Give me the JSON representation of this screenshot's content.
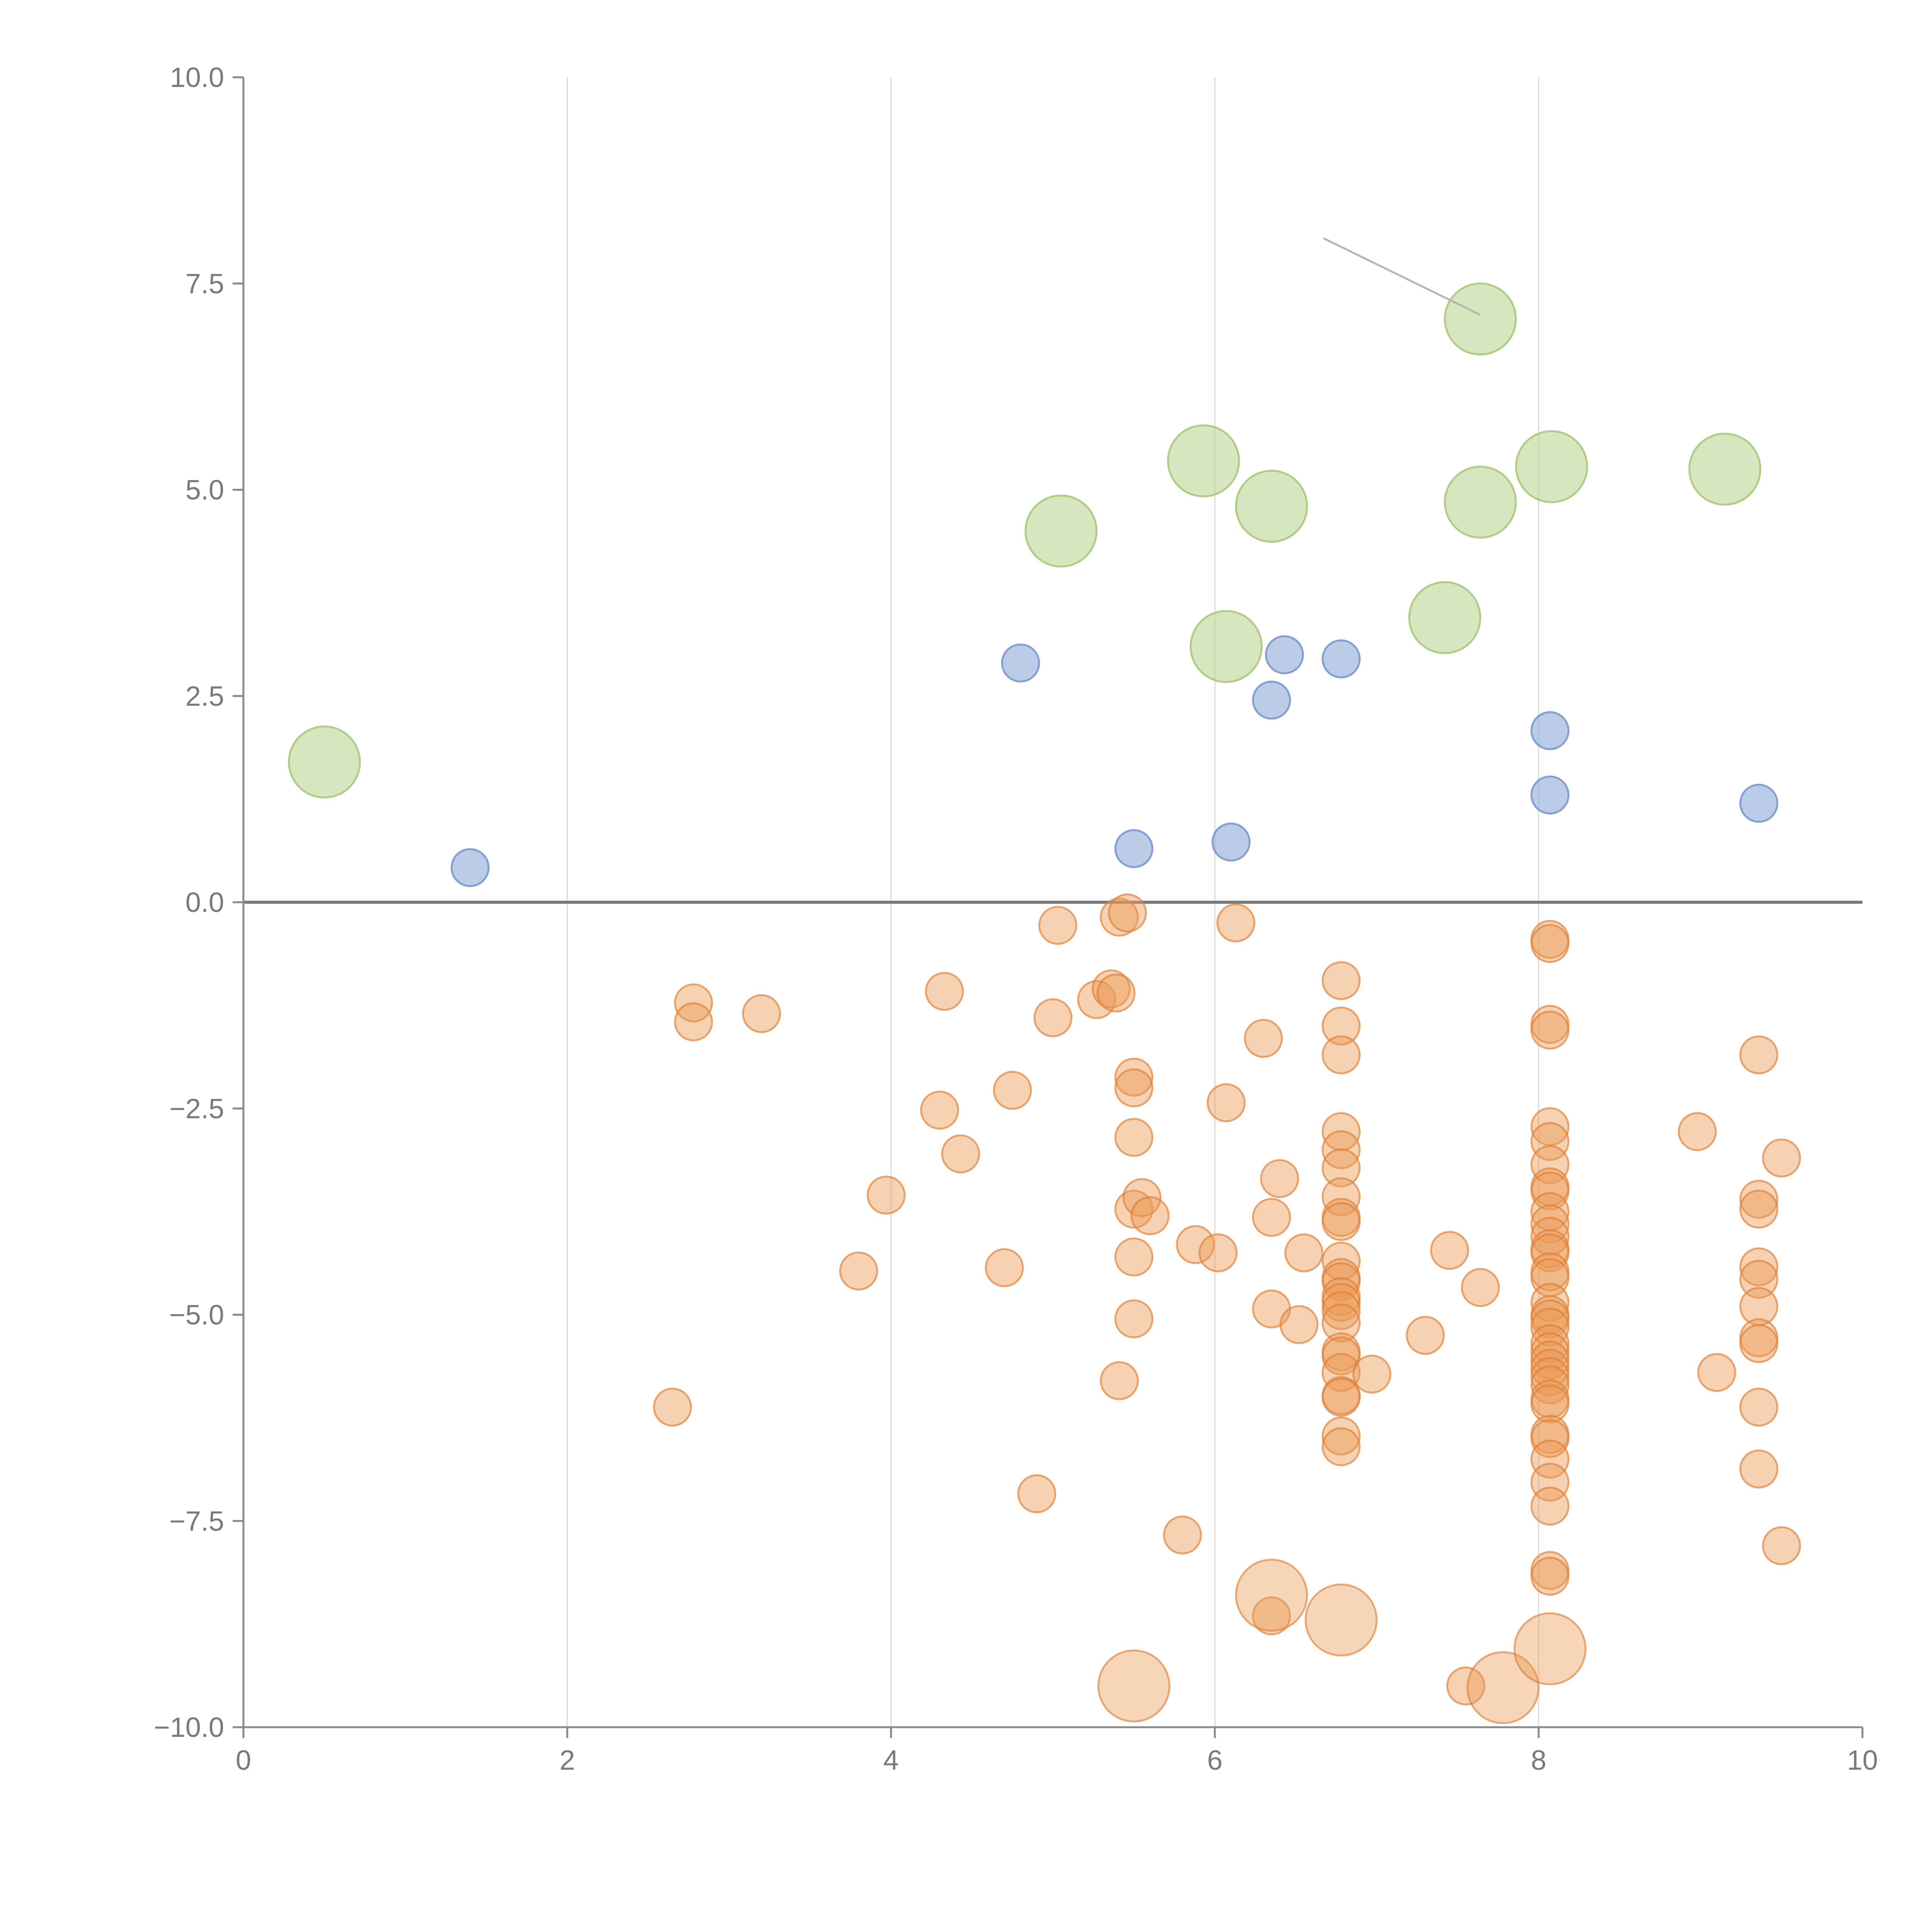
{
  "chart_data": {
    "type": "scatter",
    "title": "",
    "xlabel": "",
    "ylabel": "",
    "xlim": [
      0,
      10
    ],
    "ylim": [
      -10,
      10
    ],
    "x_ticks": [
      0,
      2,
      4,
      6,
      8,
      10
    ],
    "x_tick_labels": [
      "0",
      "2",
      "4",
      "6",
      "8",
      "10"
    ],
    "y_ticks": [
      10,
      7.5,
      5,
      2.5,
      0,
      -2.5,
      -5,
      -7.5,
      -10
    ],
    "y_tick_labels": [
      "10.0",
      "7.5",
      "5.0",
      "2.5",
      "0.0",
      "−2.5",
      "−5.0",
      "−7.5",
      "−10.0"
    ],
    "vertical_gridlines_at": [
      2,
      4,
      6,
      8
    ],
    "zero_line": 0,
    "series": [
      {
        "name": "green-large",
        "color": "#b5d18a",
        "stroke": "#9cc06a",
        "opacity": 0.55,
        "size": "large",
        "points": [
          [
            0.5,
            1.7
          ],
          [
            5.05,
            4.5
          ],
          [
            5.93,
            5.35
          ],
          [
            6.07,
            3.1
          ],
          [
            6.35,
            4.8
          ],
          [
            7.42,
            3.45
          ],
          [
            7.64,
            4.85
          ],
          [
            7.64,
            7.07
          ],
          [
            8.08,
            5.28
          ],
          [
            9.15,
            5.25
          ]
        ]
      },
      {
        "name": "blue-small",
        "color": "#8eaad8",
        "stroke": "#6f8fc8",
        "opacity": 0.6,
        "size": "small",
        "points": [
          [
            1.4,
            0.42
          ],
          [
            4.8,
            2.9
          ],
          [
            5.5,
            0.65
          ],
          [
            6.1,
            0.73
          ],
          [
            6.35,
            2.45
          ],
          [
            6.43,
            3.0
          ],
          [
            6.78,
            2.95
          ],
          [
            8.07,
            2.08
          ],
          [
            8.07,
            1.3
          ],
          [
            9.36,
            1.2
          ]
        ]
      },
      {
        "name": "orange-small",
        "color": "#ea9a55",
        "stroke": "#dd7e35",
        "opacity": 0.45,
        "size": "small",
        "points": [
          [
            2.65,
            -6.12
          ],
          [
            2.78,
            -1.22
          ],
          [
            2.78,
            -1.45
          ],
          [
            3.2,
            -1.35
          ],
          [
            3.8,
            -4.47
          ],
          [
            3.97,
            -3.55
          ],
          [
            4.3,
            -2.52
          ],
          [
            4.33,
            -1.08
          ],
          [
            4.43,
            -3.05
          ],
          [
            4.7,
            -4.43
          ],
          [
            4.75,
            -2.28
          ],
          [
            4.9,
            -7.17
          ],
          [
            5.0,
            -1.4
          ],
          [
            5.03,
            -0.28
          ],
          [
            5.27,
            -1.18
          ],
          [
            5.36,
            -1.05
          ],
          [
            5.39,
            -1.1
          ],
          [
            5.41,
            -0.18
          ],
          [
            5.41,
            -5.8
          ],
          [
            5.46,
            -0.13
          ],
          [
            5.5,
            -2.12
          ],
          [
            5.5,
            -2.25
          ],
          [
            5.5,
            -2.85
          ],
          [
            5.5,
            -3.72
          ],
          [
            5.5,
            -4.3
          ],
          [
            5.5,
            -5.05
          ],
          [
            5.55,
            -3.58
          ],
          [
            5.6,
            -3.8
          ],
          [
            5.8,
            -7.67
          ],
          [
            5.88,
            -4.15
          ],
          [
            6.02,
            -4.25
          ],
          [
            6.07,
            -2.43
          ],
          [
            6.13,
            -0.25
          ],
          [
            6.3,
            -1.65
          ],
          [
            6.35,
            -3.82
          ],
          [
            6.35,
            -4.93
          ],
          [
            6.35,
            -8.65
          ],
          [
            6.4,
            -3.35
          ],
          [
            6.52,
            -5.12
          ],
          [
            6.55,
            -4.25
          ],
          [
            6.78,
            -0.95
          ],
          [
            6.78,
            -1.5
          ],
          [
            6.78,
            -1.85
          ],
          [
            6.78,
            -2.78
          ],
          [
            6.78,
            -3.0
          ],
          [
            6.78,
            -3.22
          ],
          [
            6.78,
            -3.57
          ],
          [
            6.78,
            -3.82
          ],
          [
            6.78,
            -3.87
          ],
          [
            6.78,
            -4.35
          ],
          [
            6.78,
            -4.55
          ],
          [
            6.78,
            -4.6
          ],
          [
            6.78,
            -4.78
          ],
          [
            6.78,
            -4.85
          ],
          [
            6.78,
            -4.95
          ],
          [
            6.78,
            -5.1
          ],
          [
            6.78,
            -5.45
          ],
          [
            6.78,
            -5.5
          ],
          [
            6.78,
            -5.7
          ],
          [
            6.78,
            -5.98
          ],
          [
            6.78,
            -6.0
          ],
          [
            6.78,
            -6.47
          ],
          [
            6.78,
            -6.6
          ],
          [
            6.97,
            -5.72
          ],
          [
            7.3,
            -5.25
          ],
          [
            7.45,
            -4.22
          ],
          [
            7.55,
            -9.5
          ],
          [
            7.64,
            -4.67
          ],
          [
            8.07,
            -0.45
          ],
          [
            8.07,
            -0.5
          ],
          [
            8.07,
            -1.48
          ],
          [
            8.07,
            -1.55
          ],
          [
            8.07,
            -2.72
          ],
          [
            8.07,
            -2.9
          ],
          [
            8.07,
            -3.18
          ],
          [
            8.07,
            -3.45
          ],
          [
            8.07,
            -3.5
          ],
          [
            8.07,
            -3.75
          ],
          [
            8.07,
            -3.9
          ],
          [
            8.07,
            -4.05
          ],
          [
            8.07,
            -4.2
          ],
          [
            8.07,
            -4.25
          ],
          [
            8.07,
            -4.48
          ],
          [
            8.07,
            -4.55
          ],
          [
            8.07,
            -4.85
          ],
          [
            8.07,
            -5.0
          ],
          [
            8.07,
            -5.05
          ],
          [
            8.07,
            -5.15
          ],
          [
            8.07,
            -5.35
          ],
          [
            8.07,
            -5.45
          ],
          [
            8.07,
            -5.55
          ],
          [
            8.07,
            -5.65
          ],
          [
            8.07,
            -5.75
          ],
          [
            8.07,
            -5.85
          ],
          [
            8.07,
            -6.02
          ],
          [
            8.07,
            -6.08
          ],
          [
            8.07,
            -6.45
          ],
          [
            8.07,
            -6.5
          ],
          [
            8.07,
            -6.75
          ],
          [
            8.07,
            -7.03
          ],
          [
            8.07,
            -7.32
          ],
          [
            8.07,
            -8.1
          ],
          [
            8.07,
            -8.17
          ],
          [
            8.98,
            -2.78
          ],
          [
            9.1,
            -5.7
          ],
          [
            9.36,
            -1.85
          ],
          [
            9.36,
            -3.6
          ],
          [
            9.36,
            -3.72
          ],
          [
            9.36,
            -4.42
          ],
          [
            9.36,
            -4.57
          ],
          [
            9.36,
            -4.9
          ],
          [
            9.36,
            -5.28
          ],
          [
            9.36,
            -5.35
          ],
          [
            9.36,
            -6.12
          ],
          [
            9.36,
            -6.87
          ],
          [
            9.5,
            -3.1
          ],
          [
            9.5,
            -7.8
          ]
        ]
      },
      {
        "name": "orange-large",
        "color": "#ea9a55",
        "stroke": "#dd7e35",
        "opacity": 0.42,
        "size": "large",
        "points": [
          [
            5.5,
            -9.5
          ],
          [
            6.35,
            -8.4
          ],
          [
            6.78,
            -8.7
          ],
          [
            7.78,
            -9.52
          ],
          [
            8.07,
            -9.05
          ]
        ]
      }
    ],
    "callout_line": {
      "from": [
        6.67,
        8.05
      ],
      "to": [
        7.64,
        7.12
      ]
    }
  }
}
